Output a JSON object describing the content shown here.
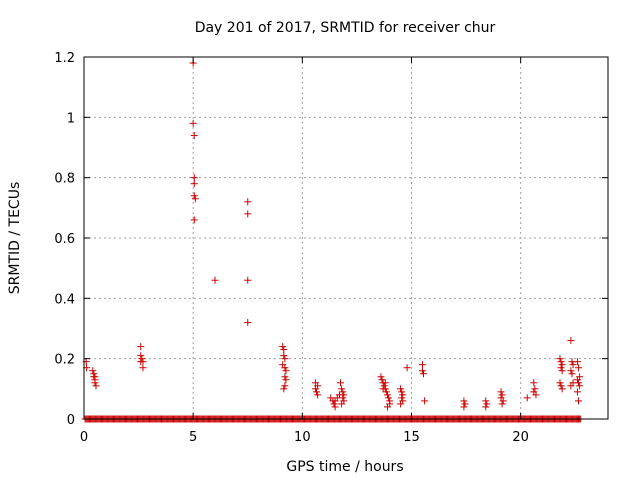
{
  "chart_data": {
    "type": "scatter",
    "title": "Day 201 of 2017, SRMTID for receiver chur",
    "xlabel": "GPS time / hours",
    "ylabel": "SRMTID / TECUs",
    "xlim": [
      0,
      24
    ],
    "ylim": [
      0,
      1.2
    ],
    "xticks": [
      0,
      5,
      10,
      15,
      20
    ],
    "xtick_labels": [
      "0",
      "5",
      "10",
      "15",
      "20"
    ],
    "yticks": [
      0,
      0.2,
      0.4,
      0.6,
      0.8,
      1,
      1.2
    ],
    "ytick_labels": [
      "0",
      "0.2",
      "0.4",
      "0.6",
      "0.8",
      "1",
      "1.2"
    ],
    "grid": true,
    "marker": "+",
    "color": "#cc0000",
    "baseline_zero_range": [
      0.05,
      22.8
    ],
    "series": [
      {
        "name": "SRMTID",
        "points": [
          [
            0.1,
            0.19
          ],
          [
            0.12,
            0.17
          ],
          [
            0.4,
            0.16
          ],
          [
            0.45,
            0.15
          ],
          [
            0.45,
            0.14
          ],
          [
            0.5,
            0.13
          ],
          [
            0.5,
            0.12
          ],
          [
            0.55,
            0.11
          ],
          [
            0.5,
            0.14
          ],
          [
            2.6,
            0.24
          ],
          [
            2.6,
            0.21
          ],
          [
            2.65,
            0.2
          ],
          [
            2.6,
            0.19
          ],
          [
            2.7,
            0.19
          ],
          [
            2.7,
            0.17
          ],
          [
            5.0,
            1.18
          ],
          [
            5.0,
            0.98
          ],
          [
            5.05,
            0.94
          ],
          [
            5.05,
            0.8
          ],
          [
            5.05,
            0.78
          ],
          [
            5.05,
            0.74
          ],
          [
            5.1,
            0.73
          ],
          [
            5.05,
            0.66
          ],
          [
            6.0,
            0.46
          ],
          [
            7.5,
            0.72
          ],
          [
            7.5,
            0.68
          ],
          [
            7.5,
            0.46
          ],
          [
            7.5,
            0.32
          ],
          [
            9.1,
            0.24
          ],
          [
            9.15,
            0.23
          ],
          [
            9.15,
            0.21
          ],
          [
            9.2,
            0.2
          ],
          [
            9.1,
            0.18
          ],
          [
            9.2,
            0.17
          ],
          [
            9.25,
            0.16
          ],
          [
            9.2,
            0.14
          ],
          [
            9.25,
            0.13
          ],
          [
            9.2,
            0.11
          ],
          [
            9.15,
            0.1
          ],
          [
            10.6,
            0.12
          ],
          [
            10.7,
            0.11
          ],
          [
            10.6,
            0.1
          ],
          [
            10.65,
            0.09
          ],
          [
            10.7,
            0.08
          ],
          [
            11.3,
            0.07
          ],
          [
            11.4,
            0.06
          ],
          [
            11.45,
            0.05
          ],
          [
            11.5,
            0.06
          ],
          [
            11.6,
            0.07
          ],
          [
            11.7,
            0.08
          ],
          [
            11.75,
            0.12
          ],
          [
            11.8,
            0.1
          ],
          [
            11.85,
            0.09
          ],
          [
            11.9,
            0.08
          ],
          [
            11.85,
            0.07
          ],
          [
            11.9,
            0.06
          ],
          [
            11.8,
            0.05
          ],
          [
            11.5,
            0.04
          ],
          [
            13.6,
            0.14
          ],
          [
            13.65,
            0.13
          ],
          [
            13.7,
            0.12
          ],
          [
            13.75,
            0.11
          ],
          [
            13.8,
            0.1
          ],
          [
            13.85,
            0.09
          ],
          [
            13.9,
            0.08
          ],
          [
            13.95,
            0.07
          ],
          [
            14.0,
            0.06
          ],
          [
            14.0,
            0.05
          ],
          [
            13.9,
            0.04
          ],
          [
            13.7,
            0.1
          ],
          [
            13.8,
            0.12
          ],
          [
            14.5,
            0.1
          ],
          [
            14.55,
            0.09
          ],
          [
            14.6,
            0.08
          ],
          [
            14.55,
            0.07
          ],
          [
            14.6,
            0.06
          ],
          [
            14.5,
            0.05
          ],
          [
            14.8,
            0.17
          ],
          [
            15.5,
            0.18
          ],
          [
            15.5,
            0.16
          ],
          [
            15.55,
            0.15
          ],
          [
            15.6,
            0.06
          ],
          [
            17.4,
            0.06
          ],
          [
            17.45,
            0.05
          ],
          [
            17.4,
            0.04
          ],
          [
            18.4,
            0.06
          ],
          [
            18.45,
            0.05
          ],
          [
            18.4,
            0.04
          ],
          [
            19.1,
            0.09
          ],
          [
            19.15,
            0.08
          ],
          [
            19.1,
            0.07
          ],
          [
            19.2,
            0.06
          ],
          [
            19.15,
            0.05
          ],
          [
            20.3,
            0.07
          ],
          [
            20.6,
            0.12
          ],
          [
            20.65,
            0.1
          ],
          [
            20.6,
            0.09
          ],
          [
            20.7,
            0.08
          ],
          [
            21.8,
            0.2
          ],
          [
            21.85,
            0.19
          ],
          [
            21.9,
            0.18
          ],
          [
            21.85,
            0.17
          ],
          [
            21.9,
            0.16
          ],
          [
            21.8,
            0.12
          ],
          [
            21.85,
            0.11
          ],
          [
            21.9,
            0.1
          ],
          [
            22.3,
            0.26
          ],
          [
            22.35,
            0.19
          ],
          [
            22.4,
            0.18
          ],
          [
            22.3,
            0.16
          ],
          [
            22.35,
            0.15
          ],
          [
            22.4,
            0.12
          ],
          [
            22.3,
            0.11
          ],
          [
            22.6,
            0.19
          ],
          [
            22.65,
            0.17
          ],
          [
            22.7,
            0.14
          ],
          [
            22.6,
            0.13
          ],
          [
            22.65,
            0.12
          ],
          [
            22.7,
            0.11
          ],
          [
            22.6,
            0.09
          ],
          [
            22.65,
            0.06
          ]
        ]
      }
    ]
  }
}
